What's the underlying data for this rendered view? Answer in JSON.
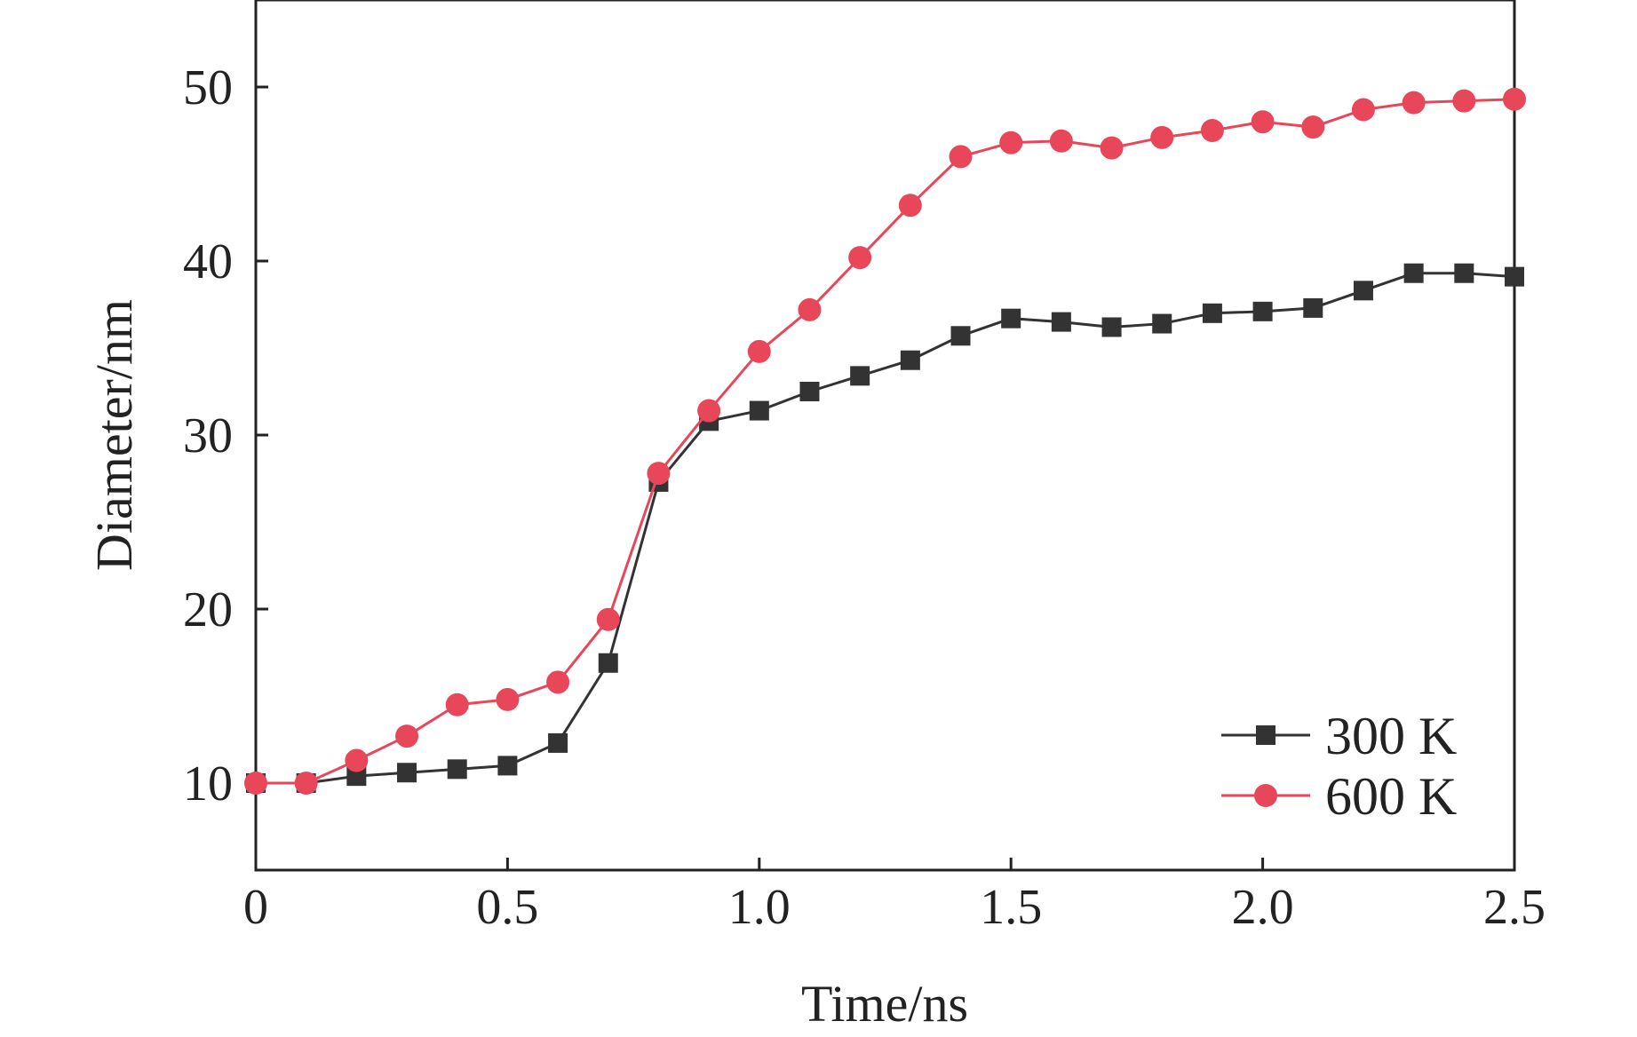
{
  "chart_data": {
    "type": "line",
    "title": "",
    "xlabel": "Time/ns",
    "ylabel": "Diameter/nm",
    "xlim": [
      0,
      2.5
    ],
    "ylim": [
      5,
      55
    ],
    "xticks": [
      0,
      0.5,
      1.0,
      1.5,
      2.0,
      2.5
    ],
    "xtick_labels": [
      "0",
      "0.5",
      "1.0",
      "1.5",
      "2.0",
      "2.5"
    ],
    "yticks": [
      10,
      20,
      30,
      40,
      50
    ],
    "ytick_labels": [
      "10",
      "20",
      "30",
      "40",
      "50"
    ],
    "grid": false,
    "legend_position": "bottom-right",
    "x": [
      0,
      0.1,
      0.2,
      0.3,
      0.4,
      0.5,
      0.6,
      0.7,
      0.8,
      0.9,
      1.0,
      1.1,
      1.2,
      1.3,
      1.4,
      1.5,
      1.6,
      1.7,
      1.8,
      1.9,
      2.0,
      2.1,
      2.2,
      2.3,
      2.4,
      2.5
    ],
    "series": [
      {
        "name": "300 K",
        "marker": "square",
        "color": "#333333",
        "values": [
          10.0,
          10.0,
          10.4,
          10.6,
          10.8,
          11.0,
          12.3,
          16.9,
          27.3,
          30.8,
          31.4,
          32.5,
          33.4,
          34.3,
          35.7,
          36.7,
          36.5,
          36.2,
          36.4,
          37.0,
          37.1,
          37.3,
          38.3,
          39.3,
          39.3,
          39.1
        ]
      },
      {
        "name": "600 K",
        "marker": "circle",
        "color": "#e8475a",
        "values": [
          10.0,
          10.0,
          11.3,
          12.7,
          14.5,
          14.8,
          15.8,
          19.4,
          27.8,
          31.4,
          34.8,
          37.2,
          40.2,
          43.2,
          46.0,
          46.8,
          46.9,
          46.5,
          47.1,
          47.5,
          48.0,
          47.7,
          48.7,
          49.1,
          49.2,
          49.3
        ]
      }
    ]
  }
}
